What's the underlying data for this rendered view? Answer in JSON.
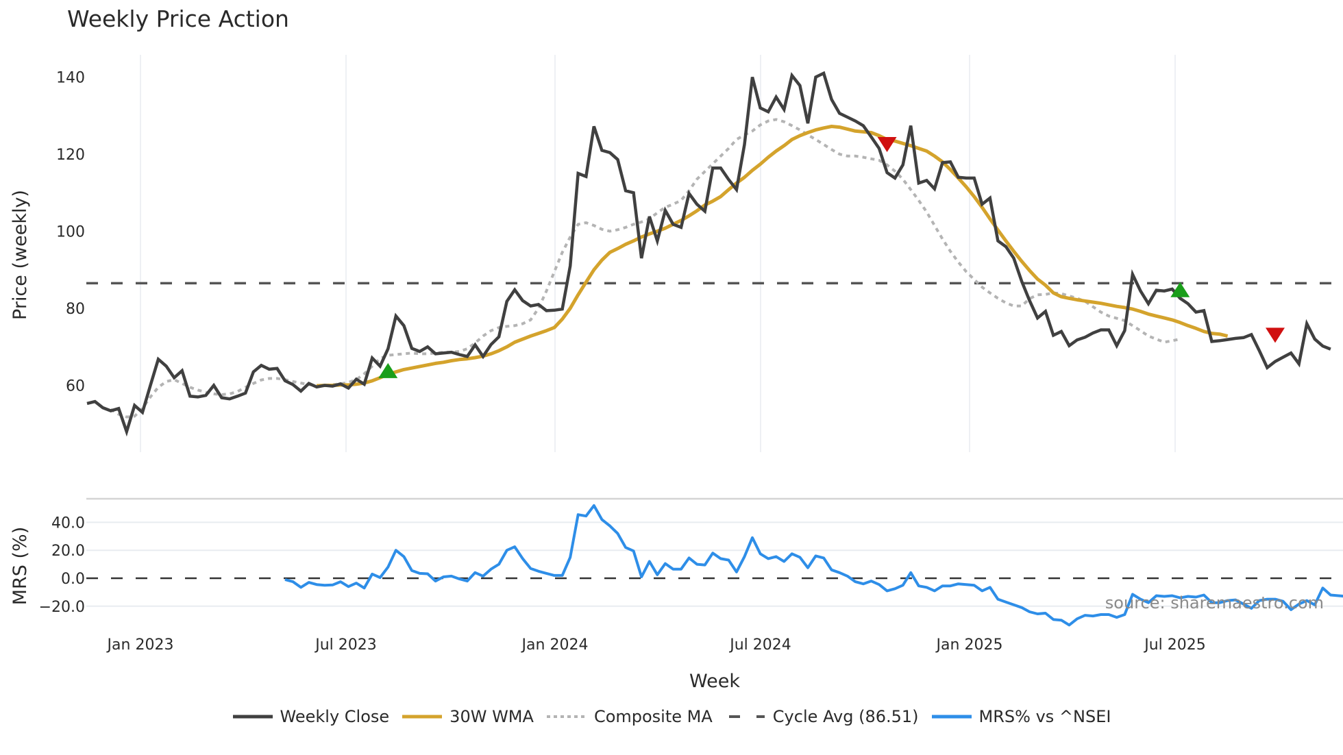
{
  "title": "Weekly Price Action",
  "price_panel": {
    "ylabel": "Price (weekly)",
    "yticks": [
      60,
      80,
      100,
      120,
      140
    ],
    "cycle_avg": 86.51
  },
  "mrs_panel": {
    "ylabel": "MRS (%)",
    "yticks": [
      "40.0",
      "20.0",
      "0.0",
      "−20.0"
    ]
  },
  "xaxis": {
    "title": "Week",
    "ticks": [
      "Jan 2023",
      "Jul 2023",
      "Jan 2024",
      "Jul 2024",
      "Jan 2025",
      "Jul 2025"
    ]
  },
  "source": "source: sharemaestro.com",
  "legend": [
    {
      "label": "Weekly Close",
      "color": "#404040",
      "style": "solid"
    },
    {
      "label": "30W WMA",
      "color": "#d4a32c",
      "style": "solid"
    },
    {
      "label": "Composite MA",
      "color": "#b4b4b4",
      "style": "dotted"
    },
    {
      "label": "Cycle Avg (86.51)",
      "color": "#555555",
      "style": "dashed"
    },
    {
      "label": "MRS% vs ^NSEI",
      "color": "#2e8ee8",
      "style": "solid"
    }
  ],
  "colors": {
    "close": "#404040",
    "wma": "#d4a32c",
    "composite": "#b4b4b4",
    "cycle": "#555555",
    "mrs": "#2e8ee8",
    "buy": "#1a9e1a",
    "sell": "#d01010",
    "grid": "#e8ecf0"
  },
  "chart_data": [
    {
      "type": "line",
      "title": "Weekly Price Action",
      "xlabel": "Week",
      "ylabel": "Price (weekly)",
      "ylim": [
        43,
        146
      ],
      "x_ticks": [
        "Jan 2023",
        "Jul 2023",
        "Jan 2024",
        "Jul 2024",
        "Jan 2025",
        "Jul 2025"
      ],
      "x_start": "2022-11 (approx)",
      "series": [
        {
          "name": "Weekly Close",
          "values": [
            55.3,
            55.8,
            54.2,
            53.4,
            54.0,
            48.0,
            54.8,
            53.0,
            60.0,
            66.8,
            65.0,
            62.0,
            63.8,
            57.2,
            57.0,
            57.4,
            60.0,
            56.8,
            56.5,
            57.2,
            58.0,
            63.5,
            65.2,
            64.2,
            64.4,
            61.2,
            60.2,
            58.5,
            60.5,
            59.6,
            60.0,
            59.8,
            60.4,
            59.3,
            61.6,
            60.3,
            67.1,
            65.0,
            69.5,
            78.0,
            75.5,
            69.6,
            68.8,
            70.0,
            68.2,
            68.4,
            68.6,
            68.0,
            67.5,
            70.5,
            67.5,
            70.6,
            72.6,
            81.8,
            84.8,
            82.0,
            80.6,
            81.0,
            79.4,
            79.5,
            79.8,
            91.0,
            115.0,
            114.2,
            127.2,
            121.0,
            120.4,
            118.6,
            110.5,
            110.0,
            93.0,
            103.8,
            97.5,
            105.4,
            101.8,
            101.0,
            109.8,
            107.0,
            105.2,
            116.4,
            116.4,
            113.4,
            110.8,
            122.5,
            140.0,
            132.0,
            131.0,
            134.8,
            131.6,
            140.4,
            137.8,
            128.0,
            140.0,
            141.0,
            134.2,
            130.6,
            129.6,
            128.6,
            127.4,
            124.5,
            121.5,
            115.2,
            113.8,
            117.2,
            127.4,
            112.5,
            113.2,
            111.0,
            117.8,
            118.0,
            114.0,
            113.8,
            113.8,
            107.0,
            108.6,
            97.5,
            96.0,
            93.0,
            87.0,
            82.0,
            77.5,
            79.2,
            73.0,
            74.0,
            70.3,
            71.8,
            72.5,
            73.6,
            74.4,
            74.4,
            70.3,
            74.2,
            88.8,
            84.5,
            81.2,
            84.7,
            84.5,
            85.0,
            82.6,
            81.2,
            79.0,
            79.4,
            71.4,
            71.6,
            71.9,
            72.2,
            72.4,
            73.2,
            69.0,
            64.6,
            66.2,
            67.3,
            68.4,
            65.6,
            76.0,
            72.0,
            70.2,
            69.4
          ]
        },
        {
          "name": "30W WMA",
          "start_index": 29,
          "values": [
            59.9,
            60.0,
            60.0,
            60.1,
            60.1,
            60.3,
            60.6,
            61.2,
            62.0,
            62.9,
            63.5,
            64.1,
            64.5,
            64.9,
            65.3,
            65.7,
            66.0,
            66.4,
            66.7,
            66.9,
            67.2,
            67.6,
            68.2,
            69.0,
            70.0,
            71.2,
            72.0,
            72.8,
            73.5,
            74.2,
            75.0,
            77.2,
            80.0,
            83.5,
            86.8,
            90.0,
            92.5,
            94.5,
            95.5,
            96.6,
            97.5,
            98.5,
            99.3,
            100.0,
            100.8,
            101.8,
            102.8,
            104.0,
            105.3,
            106.8,
            107.8,
            109.0,
            110.8,
            112.5,
            114.0,
            115.8,
            117.4,
            119.2,
            120.8,
            122.2,
            123.8,
            124.8,
            125.6,
            126.3,
            126.8,
            127.2,
            127.0,
            126.5,
            126.0,
            125.8,
            125.6,
            124.8,
            123.8,
            123.4,
            122.8,
            122.2,
            121.5,
            120.8,
            119.5,
            118.0,
            116.0,
            113.8,
            111.5,
            109.0,
            106.2,
            103.2,
            100.3,
            97.5,
            94.8,
            92.2,
            89.8,
            87.6,
            86.0,
            84.0,
            83.0,
            82.6,
            82.2,
            81.9,
            81.6,
            81.3,
            80.9,
            80.5,
            80.2,
            79.8,
            79.2,
            78.5,
            78.0,
            77.5,
            77.0,
            76.3,
            75.5,
            74.8,
            74.0,
            73.5,
            73.3,
            72.8
          ]
        },
        {
          "name": "Composite MA",
          "start_index": 3,
          "values": [
            53.8,
            52.5,
            51.8,
            52.0,
            54.0,
            57.0,
            59.5,
            61.0,
            61.5,
            60.5,
            59.5,
            58.8,
            58.2,
            57.8,
            57.6,
            57.8,
            58.4,
            59.5,
            60.5,
            61.4,
            61.8,
            61.8,
            61.5,
            61.0,
            60.6,
            60.2,
            60.0,
            60.0,
            60.2,
            60.4,
            60.8,
            61.5,
            63.0,
            65.0,
            67.0,
            67.8,
            68.0,
            68.2,
            68.4,
            68.2,
            68.2,
            68.4,
            68.6,
            68.6,
            68.8,
            69.5,
            71.0,
            72.8,
            74.2,
            75.0,
            75.3,
            75.5,
            76.0,
            77.0,
            80.0,
            84.5,
            89.5,
            94.5,
            98.5,
            101.8,
            102.2,
            101.5,
            100.5,
            100.0,
            100.4,
            101.0,
            101.8,
            102.4,
            103.2,
            104.8,
            106.2,
            107.0,
            108.0,
            110.5,
            113.5,
            115.5,
            117.5,
            119.5,
            121.5,
            123.8,
            125.0,
            126.0,
            127.6,
            128.6,
            129.0,
            128.4,
            127.4,
            126.3,
            125.0,
            123.8,
            122.5,
            121.2,
            120.0,
            119.5,
            119.5,
            119.2,
            118.8,
            118.4,
            117.2,
            115.6,
            113.5,
            110.8,
            108.0,
            105.0,
            101.5,
            98.0,
            94.8,
            92.0,
            89.5,
            87.5,
            85.5,
            84.0,
            82.6,
            81.4,
            80.6,
            80.6,
            82.5,
            83.5,
            83.6,
            84.0,
            83.8,
            83.2,
            82.6,
            81.8,
            80.4,
            79.0,
            78.0,
            77.4,
            76.8,
            75.5,
            74.2,
            72.8,
            72.0,
            71.2,
            71.6,
            72.0
          ]
        },
        {
          "name": "Cycle Avg (86.51)",
          "constant": 86.51
        }
      ],
      "markers": [
        {
          "type": "buy",
          "index": 38,
          "value": 63.5
        },
        {
          "type": "sell",
          "index": 101,
          "value": 122.5
        },
        {
          "type": "buy",
          "index": 138,
          "value": 84.5
        },
        {
          "type": "sell",
          "index": 150,
          "value": 73.0
        }
      ]
    },
    {
      "type": "line",
      "title": "",
      "xlabel": "Week",
      "ylabel": "MRS (%)",
      "ylim": [
        -34,
        58
      ],
      "yticks": [
        40,
        20,
        0,
        -20
      ],
      "series": [
        {
          "name": "MRS% vs ^NSEI",
          "start_index": 25,
          "values": [
            -1.0,
            -2.5,
            -6.5,
            -3.0,
            -4.5,
            -5.0,
            -4.8,
            -2.5,
            -6.0,
            -3.5,
            -7.0,
            3.0,
            0.5,
            8.0,
            20.0,
            15.5,
            5.5,
            3.5,
            3.2,
            -2.0,
            1.0,
            1.5,
            -0.5,
            -2.0,
            4.0,
            1.5,
            6.5,
            10.0,
            20.0,
            22.5,
            14.0,
            7.0,
            5.0,
            3.5,
            2.0,
            2.0,
            15.0,
            45.5,
            44.5,
            52.0,
            42.0,
            37.5,
            32.0,
            22.0,
            19.5,
            1.0,
            12.0,
            2.5,
            10.5,
            6.5,
            6.5,
            14.5,
            10.0,
            9.5,
            18.0,
            14.0,
            13.0,
            4.5,
            15.5,
            29.0,
            17.5,
            14.0,
            15.5,
            12.0,
            17.5,
            15.0,
            7.5,
            16.0,
            14.5,
            6.0,
            4.0,
            1.5,
            -2.5,
            -4.0,
            -2.0,
            -4.5,
            -9.0,
            -7.5,
            -5.0,
            4.0,
            -5.5,
            -6.5,
            -9.0,
            -5.5,
            -5.5,
            -4.0,
            -4.5,
            -5.0,
            -9.0,
            -6.5,
            -15.0,
            -17.0,
            -19.0,
            -21.0,
            -24.0,
            -25.5,
            -25.0,
            -29.5,
            -30.0,
            -33.5,
            -29.0,
            -26.5,
            -27.0,
            -26.0,
            -26.0,
            -28.0,
            -26.0,
            -11.5,
            -15.0,
            -17.5,
            -12.5,
            -13.0,
            -12.5,
            -14.0,
            -13.0,
            -13.5,
            -12.0,
            -17.5,
            -17.5,
            -16.0,
            -15.5,
            -18.5,
            -21.5,
            -16.0,
            -15.0,
            -15.0,
            -16.5,
            -22.5,
            -18.5,
            -16.0,
            -19.0,
            -7.0,
            -12.0,
            -12.5,
            -13.0
          ]
        },
        {
          "name": "Zero line",
          "constant": 0
        }
      ]
    }
  ]
}
